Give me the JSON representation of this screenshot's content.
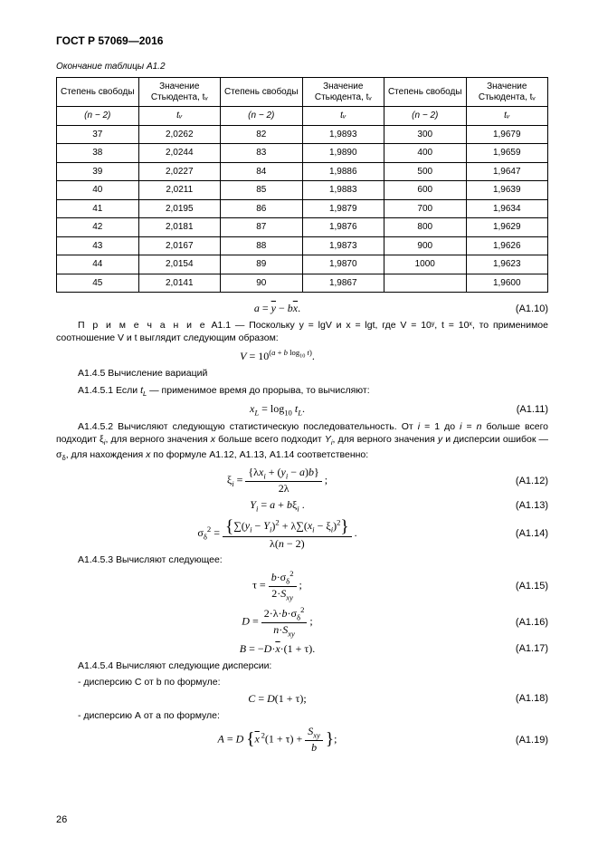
{
  "doc_header": "ГОСТ Р 57069—2016",
  "table_tail_caption": "Окончание таблицы А1.2",
  "table": {
    "columns": [
      "Степень свободы",
      "Значение Стьюдента, tᵥ",
      "Степень свободы",
      "Значение Стьюдента, tᵥ",
      "Степень свободы",
      "Значение Стьюдента, tᵥ"
    ],
    "subheader": [
      "(n − 2)",
      "tᵥ",
      "(n − 2)",
      "tᵥ",
      "(n − 2)",
      "tᵥ"
    ],
    "rows": [
      [
        "37",
        "2,0262",
        "82",
        "1,9893",
        "300",
        "1,9679"
      ],
      [
        "38",
        "2,0244",
        "83",
        "1,9890",
        "400",
        "1,9659"
      ],
      [
        "39",
        "2,0227",
        "84",
        "1,9886",
        "500",
        "1,9647"
      ],
      [
        "40",
        "2,0211",
        "85",
        "1,9883",
        "600",
        "1,9639"
      ],
      [
        "41",
        "2,0195",
        "86",
        "1,9879",
        "700",
        "1,9634"
      ],
      [
        "42",
        "2,0181",
        "87",
        "1,9876",
        "800",
        "1,9629"
      ],
      [
        "43",
        "2,0167",
        "88",
        "1,9873",
        "900",
        "1,9626"
      ],
      [
        "44",
        "2,0154",
        "89",
        "1,9870",
        "1000",
        "1,9623"
      ],
      [
        "45",
        "2,0141",
        "90",
        "1,9867",
        "",
        "1,9600"
      ]
    ],
    "border_color": "#000000",
    "cell_fontsize": 10
  },
  "equations": {
    "e_a10": {
      "num": "(A1.10)"
    },
    "e_a11": {
      "num": "(A1.11)"
    },
    "e_a12": {
      "num": "(A1.12)"
    },
    "e_a13": {
      "num": "(A1.13)"
    },
    "e_a14": {
      "num": "(A1.14)"
    },
    "e_a15": {
      "num": "(A1.15)"
    },
    "e_a16": {
      "num": "(A1.16)"
    },
    "e_a17": {
      "num": "(A1.17)"
    },
    "e_a18": {
      "num": "(A1.18)"
    },
    "e_a19": {
      "num": "(A1.19)"
    }
  },
  "text": {
    "note_label": "П р и м е ч а н и е",
    "note_body_1": " А1.1 — Поскольку y = lgV и x = lgt, где V = 10ʸ, t = 10ˣ, то применимое соотношение V и t выглядит следующим образом:",
    "note_formula": "V = 10^(a + b log₁₀ t).",
    "sec_a145": "А1.4.5 Вычисление вариаций",
    "sec_a1451": "А1.4.5.1 Если t_L — применимое время до прорыва, то вычисляют:",
    "sec_a1452": "А1.4.5.2 Вычисляют следующую статистическую последовательность. От i = 1 до i = n больше всего подходит ξᵢ, для верного значения x больше всего подходит Yᵢ, для верного значения у и дисперсии ошибок — σδ, для нахождения х по формуле А1.12, А1.13, А1.14 соответственно:",
    "sec_a1453": "А1.4.5.3 Вычисляют следующее:",
    "sec_a1454": "А1.4.5.4 Вычисляют следующие дисперсии:",
    "disp_c": "- дисперсию С от b по формуле:",
    "disp_a": "- дисперсию А от a по формуле:"
  },
  "page_number": "26",
  "colors": {
    "text": "#000000",
    "background": "#ffffff"
  }
}
